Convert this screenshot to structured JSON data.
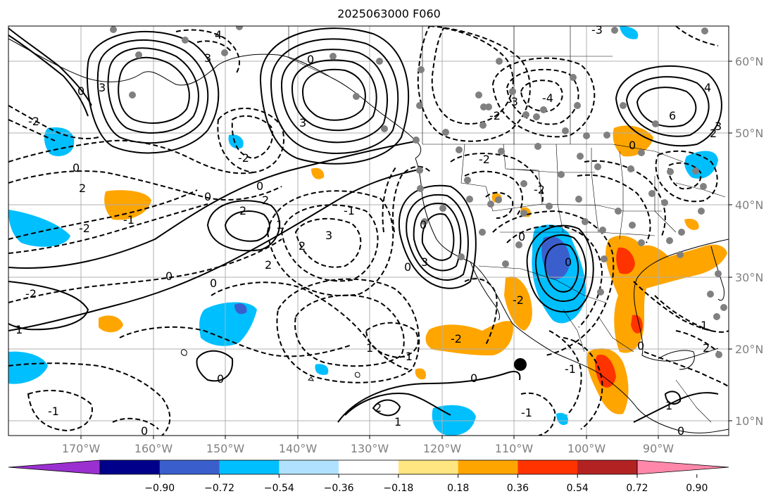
{
  "title": "2025063000 F060",
  "lon_labels": [
    "170°W",
    "160°W",
    "150°W",
    "140°W",
    "130°W",
    "120°W",
    "110°W",
    "100°W",
    "90°W"
  ],
  "lat_labels": [
    "60°N",
    "50°N",
    "40°N",
    "30°N",
    "20°N",
    "10°N"
  ],
  "colorbar": {
    "labels": [
      "−0.90",
      "−0.72",
      "−0.54",
      "−0.36",
      "−0.18",
      "0.18",
      "0.36",
      "0.54",
      "0.72",
      "0.90"
    ],
    "colors": [
      "#9b30d0",
      "#00008b",
      "#3a5fcd",
      "#00bfff",
      "#b0e2ff",
      "#ffffff",
      "#ffe680",
      "#ffa500",
      "#ff3300",
      "#b22222",
      "#ff88aa"
    ]
  },
  "contour_labels": [
    "-4",
    "-3",
    "-2",
    "-1",
    "0",
    "1",
    "2",
    "3",
    "4",
    "6"
  ],
  "marker": {
    "lon": -109,
    "lat": 17.8
  }
}
